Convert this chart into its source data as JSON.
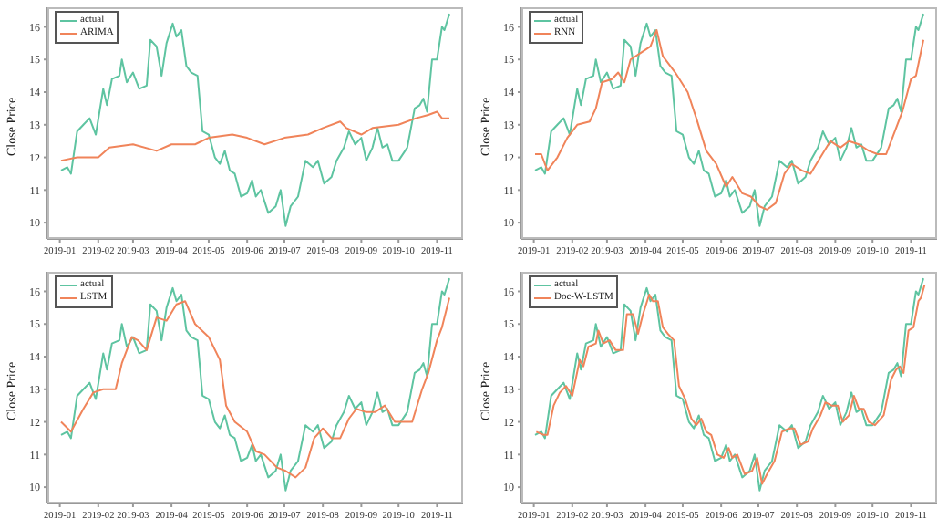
{
  "chart_data": [
    {
      "type": "line",
      "ylabel": "Close Price",
      "xlim": [
        "2018-12-22",
        "2019-11-22"
      ],
      "ylim": [
        9.5,
        16.6
      ],
      "xticks": [
        "2019-01",
        "2019-02",
        "2019-03",
        "2019-04",
        "2019-05",
        "2019-06",
        "2019-07",
        "2019-08",
        "2019-09",
        "2019-10",
        "2019-11"
      ],
      "yticks": [
        10,
        11,
        12,
        13,
        14,
        15,
        16
      ],
      "legend": "top left",
      "series": [
        {
          "name": "actual",
          "color": "#5ec4a1",
          "x": [
            "2019-01-02",
            "2019-01-07",
            "2019-01-10",
            "2019-01-15",
            "2019-01-20",
            "2019-01-25",
            "2019-01-30",
            "2019-02-05",
            "2019-02-08",
            "2019-02-12",
            "2019-02-18",
            "2019-02-20",
            "2019-02-24",
            "2019-03-01",
            "2019-03-06",
            "2019-03-12",
            "2019-03-15",
            "2019-03-20",
            "2019-03-24",
            "2019-03-28",
            "2019-04-02",
            "2019-04-05",
            "2019-04-09",
            "2019-04-13",
            "2019-04-17",
            "2019-04-22",
            "2019-04-26",
            "2019-05-01",
            "2019-05-06",
            "2019-05-10",
            "2019-05-14",
            "2019-05-18",
            "2019-05-22",
            "2019-05-27",
            "2019-06-01",
            "2019-06-05",
            "2019-06-08",
            "2019-06-12",
            "2019-06-18",
            "2019-06-24",
            "2019-06-28",
            "2019-07-02",
            "2019-07-06",
            "2019-07-12",
            "2019-07-18",
            "2019-07-24",
            "2019-07-28",
            "2019-08-02",
            "2019-08-08",
            "2019-08-12",
            "2019-08-18",
            "2019-08-22",
            "2019-08-27",
            "2019-09-01",
            "2019-09-05",
            "2019-09-10",
            "2019-09-14",
            "2019-09-18",
            "2019-09-22",
            "2019-09-26",
            "2019-10-01",
            "2019-10-08",
            "2019-10-14",
            "2019-10-18",
            "2019-10-21",
            "2019-10-24",
            "2019-10-28",
            "2019-11-01",
            "2019-11-05",
            "2019-11-07",
            "2019-11-11"
          ],
          "values": [
            11.6,
            11.7,
            11.5,
            12.8,
            13.0,
            13.2,
            12.7,
            14.1,
            13.6,
            14.4,
            14.5,
            15.0,
            14.3,
            14.6,
            14.1,
            14.2,
            15.6,
            15.4,
            14.5,
            15.5,
            16.1,
            15.7,
            15.9,
            14.8,
            14.6,
            14.5,
            12.8,
            12.7,
            12.0,
            11.8,
            12.2,
            11.6,
            11.5,
            10.8,
            10.9,
            11.3,
            10.8,
            11.0,
            10.3,
            10.5,
            11.0,
            9.9,
            10.5,
            10.8,
            11.9,
            11.7,
            11.9,
            11.2,
            11.4,
            11.9,
            12.3,
            12.8,
            12.4,
            12.6,
            11.9,
            12.3,
            12.9,
            12.3,
            12.4,
            11.9,
            11.9,
            12.3,
            13.5,
            13.6,
            13.8,
            13.4,
            15.0,
            15.0,
            16.0,
            15.9,
            16.4
          ]
        },
        {
          "name": "ARIMA",
          "color": "#f0845a",
          "x": [
            "2019-01-02",
            "2019-01-15",
            "2019-02-01",
            "2019-02-10",
            "2019-03-01",
            "2019-03-20",
            "2019-04-01",
            "2019-04-20",
            "2019-05-01",
            "2019-05-20",
            "2019-06-01",
            "2019-06-15",
            "2019-07-01",
            "2019-07-20",
            "2019-08-01",
            "2019-08-15",
            "2019-08-20",
            "2019-09-01",
            "2019-09-10",
            "2019-10-01",
            "2019-10-15",
            "2019-10-25",
            "2019-11-01",
            "2019-11-05",
            "2019-11-11"
          ],
          "values": [
            11.9,
            12.0,
            12.0,
            12.3,
            12.4,
            12.2,
            12.4,
            12.4,
            12.6,
            12.7,
            12.6,
            12.4,
            12.6,
            12.7,
            12.9,
            13.1,
            12.9,
            12.7,
            12.9,
            13.0,
            13.2,
            13.3,
            13.4,
            13.2,
            13.2
          ]
        }
      ]
    },
    {
      "type": "line",
      "ylabel": "Close Price",
      "xlim": [
        "2018-12-22",
        "2019-11-22"
      ],
      "ylim": [
        9.5,
        16.6
      ],
      "xticks": [
        "2019-01",
        "2019-02",
        "2019-03",
        "2019-04",
        "2019-05",
        "2019-06",
        "2019-07",
        "2019-08",
        "2019-09",
        "2019-10",
        "2019-11"
      ],
      "yticks": [
        10,
        11,
        12,
        13,
        14,
        15,
        16
      ],
      "legend": "top left",
      "series": [
        {
          "name": "actual",
          "color": "#5ec4a1",
          "x": [
            "2019-01-02",
            "2019-01-07",
            "2019-01-10",
            "2019-01-15",
            "2019-01-20",
            "2019-01-25",
            "2019-01-30",
            "2019-02-05",
            "2019-02-08",
            "2019-02-12",
            "2019-02-18",
            "2019-02-20",
            "2019-02-24",
            "2019-03-01",
            "2019-03-06",
            "2019-03-12",
            "2019-03-15",
            "2019-03-20",
            "2019-03-24",
            "2019-03-28",
            "2019-04-02",
            "2019-04-05",
            "2019-04-09",
            "2019-04-13",
            "2019-04-17",
            "2019-04-22",
            "2019-04-26",
            "2019-05-01",
            "2019-05-06",
            "2019-05-10",
            "2019-05-14",
            "2019-05-18",
            "2019-05-22",
            "2019-05-27",
            "2019-06-01",
            "2019-06-05",
            "2019-06-08",
            "2019-06-12",
            "2019-06-18",
            "2019-06-24",
            "2019-06-28",
            "2019-07-02",
            "2019-07-06",
            "2019-07-12",
            "2019-07-18",
            "2019-07-24",
            "2019-07-28",
            "2019-08-02",
            "2019-08-08",
            "2019-08-12",
            "2019-08-18",
            "2019-08-22",
            "2019-08-27",
            "2019-09-01",
            "2019-09-05",
            "2019-09-10",
            "2019-09-14",
            "2019-09-18",
            "2019-09-22",
            "2019-09-26",
            "2019-10-01",
            "2019-10-08",
            "2019-10-14",
            "2019-10-18",
            "2019-10-21",
            "2019-10-24",
            "2019-10-28",
            "2019-11-01",
            "2019-11-05",
            "2019-11-07",
            "2019-11-11"
          ],
          "values": [
            11.6,
            11.7,
            11.5,
            12.8,
            13.0,
            13.2,
            12.7,
            14.1,
            13.6,
            14.4,
            14.5,
            15.0,
            14.3,
            14.6,
            14.1,
            14.2,
            15.6,
            15.4,
            14.5,
            15.5,
            16.1,
            15.7,
            15.9,
            14.8,
            14.6,
            14.5,
            12.8,
            12.7,
            12.0,
            11.8,
            12.2,
            11.6,
            11.5,
            10.8,
            10.9,
            11.3,
            10.8,
            11.0,
            10.3,
            10.5,
            11.0,
            9.9,
            10.5,
            10.8,
            11.9,
            11.7,
            11.9,
            11.2,
            11.4,
            11.9,
            12.3,
            12.8,
            12.4,
            12.6,
            11.9,
            12.3,
            12.9,
            12.3,
            12.4,
            11.9,
            11.9,
            12.3,
            13.5,
            13.6,
            13.8,
            13.4,
            15.0,
            15.0,
            16.0,
            15.9,
            16.4
          ]
        },
        {
          "name": "RNN",
          "color": "#f0845a",
          "x": [
            "2019-01-02",
            "2019-01-07",
            "2019-01-12",
            "2019-01-20",
            "2019-01-28",
            "2019-02-05",
            "2019-02-15",
            "2019-02-20",
            "2019-02-25",
            "2019-03-05",
            "2019-03-10",
            "2019-03-15",
            "2019-03-20",
            "2019-03-28",
            "2019-04-05",
            "2019-04-10",
            "2019-04-15",
            "2019-04-25",
            "2019-05-05",
            "2019-05-12",
            "2019-05-20",
            "2019-05-28",
            "2019-06-05",
            "2019-06-10",
            "2019-06-18",
            "2019-06-25",
            "2019-07-02",
            "2019-07-08",
            "2019-07-15",
            "2019-07-22",
            "2019-07-28",
            "2019-08-05",
            "2019-08-12",
            "2019-08-20",
            "2019-08-28",
            "2019-09-05",
            "2019-09-12",
            "2019-09-20",
            "2019-09-28",
            "2019-10-05",
            "2019-10-12",
            "2019-10-20",
            "2019-10-25",
            "2019-11-01",
            "2019-11-05",
            "2019-11-11"
          ],
          "values": [
            12.1,
            12.1,
            11.6,
            12.0,
            12.6,
            13.0,
            13.1,
            13.5,
            14.3,
            14.4,
            14.6,
            14.3,
            15.0,
            15.2,
            15.4,
            15.9,
            15.1,
            14.6,
            14.0,
            13.2,
            12.2,
            11.8,
            11.1,
            11.4,
            10.9,
            10.8,
            10.5,
            10.4,
            10.6,
            11.5,
            11.8,
            11.6,
            11.5,
            12.0,
            12.5,
            12.3,
            12.5,
            12.4,
            12.2,
            12.1,
            12.1,
            12.9,
            13.4,
            14.4,
            14.5,
            15.6
          ]
        }
      ]
    },
    {
      "type": "line",
      "ylabel": "Close Price",
      "xlim": [
        "2018-12-22",
        "2019-11-22"
      ],
      "ylim": [
        9.5,
        16.6
      ],
      "xticks": [
        "2019-01",
        "2019-02",
        "2019-03",
        "2019-04",
        "2019-05",
        "2019-06",
        "2019-07",
        "2019-08",
        "2019-09",
        "2019-10",
        "2019-11"
      ],
      "yticks": [
        10,
        11,
        12,
        13,
        14,
        15,
        16
      ],
      "legend": "top left",
      "series": [
        {
          "name": "actual",
          "color": "#5ec4a1",
          "x": [
            "2019-01-02",
            "2019-01-07",
            "2019-01-10",
            "2019-01-15",
            "2019-01-20",
            "2019-01-25",
            "2019-01-30",
            "2019-02-05",
            "2019-02-08",
            "2019-02-12",
            "2019-02-18",
            "2019-02-20",
            "2019-02-24",
            "2019-03-01",
            "2019-03-06",
            "2019-03-12",
            "2019-03-15",
            "2019-03-20",
            "2019-03-24",
            "2019-03-28",
            "2019-04-02",
            "2019-04-05",
            "2019-04-09",
            "2019-04-13",
            "2019-04-17",
            "2019-04-22",
            "2019-04-26",
            "2019-05-01",
            "2019-05-06",
            "2019-05-10",
            "2019-05-14",
            "2019-05-18",
            "2019-05-22",
            "2019-05-27",
            "2019-06-01",
            "2019-06-05",
            "2019-06-08",
            "2019-06-12",
            "2019-06-18",
            "2019-06-24",
            "2019-06-28",
            "2019-07-02",
            "2019-07-06",
            "2019-07-12",
            "2019-07-18",
            "2019-07-24",
            "2019-07-28",
            "2019-08-02",
            "2019-08-08",
            "2019-08-12",
            "2019-08-18",
            "2019-08-22",
            "2019-08-27",
            "2019-09-01",
            "2019-09-05",
            "2019-09-10",
            "2019-09-14",
            "2019-09-18",
            "2019-09-22",
            "2019-09-26",
            "2019-10-01",
            "2019-10-08",
            "2019-10-14",
            "2019-10-18",
            "2019-10-21",
            "2019-10-24",
            "2019-10-28",
            "2019-11-01",
            "2019-11-05",
            "2019-11-07",
            "2019-11-11"
          ],
          "values": [
            11.6,
            11.7,
            11.5,
            12.8,
            13.0,
            13.2,
            12.7,
            14.1,
            13.6,
            14.4,
            14.5,
            15.0,
            14.3,
            14.6,
            14.1,
            14.2,
            15.6,
            15.4,
            14.5,
            15.5,
            16.1,
            15.7,
            15.9,
            14.8,
            14.6,
            14.5,
            12.8,
            12.7,
            12.0,
            11.8,
            12.2,
            11.6,
            11.5,
            10.8,
            10.9,
            11.3,
            10.8,
            11.0,
            10.3,
            10.5,
            11.0,
            9.9,
            10.5,
            10.8,
            11.9,
            11.7,
            11.9,
            11.2,
            11.4,
            11.9,
            12.3,
            12.8,
            12.4,
            12.6,
            11.9,
            12.3,
            12.9,
            12.3,
            12.4,
            11.9,
            11.9,
            12.3,
            13.5,
            13.6,
            13.8,
            13.4,
            15.0,
            15.0,
            16.0,
            15.9,
            16.4
          ]
        },
        {
          "name": "LSTM",
          "color": "#f0845a",
          "x": [
            "2019-01-02",
            "2019-01-10",
            "2019-01-20",
            "2019-01-28",
            "2019-02-05",
            "2019-02-15",
            "2019-02-20",
            "2019-02-28",
            "2019-03-05",
            "2019-03-12",
            "2019-03-20",
            "2019-03-28",
            "2019-04-05",
            "2019-04-12",
            "2019-04-20",
            "2019-05-01",
            "2019-05-10",
            "2019-05-15",
            "2019-05-22",
            "2019-06-01",
            "2019-06-08",
            "2019-06-15",
            "2019-06-25",
            "2019-07-02",
            "2019-07-10",
            "2019-07-18",
            "2019-07-25",
            "2019-08-01",
            "2019-08-08",
            "2019-08-15",
            "2019-08-22",
            "2019-08-28",
            "2019-09-05",
            "2019-09-12",
            "2019-09-20",
            "2019-09-28",
            "2019-10-05",
            "2019-10-12",
            "2019-10-20",
            "2019-10-25",
            "2019-11-01",
            "2019-11-05",
            "2019-11-11"
          ],
          "values": [
            12.0,
            11.7,
            12.4,
            12.9,
            13.0,
            13.0,
            13.8,
            14.6,
            14.5,
            14.2,
            15.2,
            15.1,
            15.6,
            15.7,
            15.0,
            14.6,
            13.9,
            12.5,
            12.0,
            11.7,
            11.1,
            11.0,
            10.6,
            10.5,
            10.3,
            10.6,
            11.5,
            11.8,
            11.5,
            11.5,
            12.1,
            12.4,
            12.3,
            12.3,
            12.5,
            12.0,
            12.0,
            12.0,
            13.0,
            13.5,
            14.5,
            14.9,
            15.8
          ]
        }
      ]
    },
    {
      "type": "line",
      "ylabel": "Close Price",
      "xlim": [
        "2018-12-22",
        "2019-11-22"
      ],
      "ylim": [
        9.5,
        16.6
      ],
      "xticks": [
        "2019-01",
        "2019-02",
        "2019-03",
        "2019-04",
        "2019-05",
        "2019-06",
        "2019-07",
        "2019-08",
        "2019-09",
        "2019-10",
        "2019-11"
      ],
      "yticks": [
        10,
        11,
        12,
        13,
        14,
        15,
        16
      ],
      "legend": "top left",
      "series": [
        {
          "name": "actual",
          "color": "#5ec4a1",
          "x": [
            "2019-01-02",
            "2019-01-07",
            "2019-01-10",
            "2019-01-15",
            "2019-01-20",
            "2019-01-25",
            "2019-01-30",
            "2019-02-05",
            "2019-02-08",
            "2019-02-12",
            "2019-02-18",
            "2019-02-20",
            "2019-02-24",
            "2019-03-01",
            "2019-03-06",
            "2019-03-12",
            "2019-03-15",
            "2019-03-20",
            "2019-03-24",
            "2019-03-28",
            "2019-04-02",
            "2019-04-05",
            "2019-04-09",
            "2019-04-13",
            "2019-04-17",
            "2019-04-22",
            "2019-04-26",
            "2019-05-01",
            "2019-05-06",
            "2019-05-10",
            "2019-05-14",
            "2019-05-18",
            "2019-05-22",
            "2019-05-27",
            "2019-06-01",
            "2019-06-05",
            "2019-06-08",
            "2019-06-12",
            "2019-06-18",
            "2019-06-24",
            "2019-06-28",
            "2019-07-02",
            "2019-07-06",
            "2019-07-12",
            "2019-07-18",
            "2019-07-24",
            "2019-07-28",
            "2019-08-02",
            "2019-08-08",
            "2019-08-12",
            "2019-08-18",
            "2019-08-22",
            "2019-08-27",
            "2019-09-01",
            "2019-09-05",
            "2019-09-10",
            "2019-09-14",
            "2019-09-18",
            "2019-09-22",
            "2019-09-26",
            "2019-10-01",
            "2019-10-08",
            "2019-10-14",
            "2019-10-18",
            "2019-10-21",
            "2019-10-24",
            "2019-10-28",
            "2019-11-01",
            "2019-11-05",
            "2019-11-07",
            "2019-11-11"
          ],
          "values": [
            11.6,
            11.7,
            11.5,
            12.8,
            13.0,
            13.2,
            12.7,
            14.1,
            13.6,
            14.4,
            14.5,
            15.0,
            14.3,
            14.6,
            14.1,
            14.2,
            15.6,
            15.4,
            14.5,
            15.5,
            16.1,
            15.7,
            15.9,
            14.8,
            14.6,
            14.5,
            12.8,
            12.7,
            12.0,
            11.8,
            12.2,
            11.6,
            11.5,
            10.8,
            10.9,
            11.3,
            10.8,
            11.0,
            10.3,
            10.5,
            11.0,
            9.9,
            10.5,
            10.8,
            11.9,
            11.7,
            11.9,
            11.2,
            11.4,
            11.9,
            12.3,
            12.8,
            12.4,
            12.6,
            11.9,
            12.3,
            12.9,
            12.3,
            12.4,
            11.9,
            11.9,
            12.3,
            13.5,
            13.6,
            13.8,
            13.4,
            15.0,
            15.0,
            16.0,
            15.9,
            16.4
          ]
        },
        {
          "name": "Doc-W-LSTM",
          "color": "#f0845a",
          "x": [
            "2019-01-03",
            "2019-01-09",
            "2019-01-12",
            "2019-01-17",
            "2019-01-22",
            "2019-01-27",
            "2019-02-01",
            "2019-02-07",
            "2019-02-10",
            "2019-02-14",
            "2019-02-20",
            "2019-02-22",
            "2019-02-26",
            "2019-03-03",
            "2019-03-08",
            "2019-03-14",
            "2019-03-17",
            "2019-03-22",
            "2019-03-26",
            "2019-03-30",
            "2019-04-04",
            "2019-04-07",
            "2019-04-11",
            "2019-04-15",
            "2019-04-19",
            "2019-04-24",
            "2019-04-28",
            "2019-05-03",
            "2019-05-08",
            "2019-05-12",
            "2019-05-16",
            "2019-05-20",
            "2019-05-24",
            "2019-05-29",
            "2019-06-03",
            "2019-06-07",
            "2019-06-10",
            "2019-06-14",
            "2019-06-20",
            "2019-06-26",
            "2019-06-30",
            "2019-07-04",
            "2019-07-08",
            "2019-07-14",
            "2019-07-20",
            "2019-07-26",
            "2019-07-30",
            "2019-08-04",
            "2019-08-10",
            "2019-08-14",
            "2019-08-20",
            "2019-08-24",
            "2019-08-29",
            "2019-09-03",
            "2019-09-07",
            "2019-09-12",
            "2019-09-16",
            "2019-09-20",
            "2019-09-24",
            "2019-09-28",
            "2019-10-03",
            "2019-10-10",
            "2019-10-16",
            "2019-10-20",
            "2019-10-23",
            "2019-10-26",
            "2019-10-30",
            "2019-11-03",
            "2019-11-07",
            "2019-11-09",
            "2019-11-12"
          ],
          "values": [
            11.7,
            11.6,
            11.6,
            12.5,
            12.9,
            13.1,
            12.8,
            13.9,
            13.7,
            14.3,
            14.4,
            14.8,
            14.4,
            14.5,
            14.2,
            14.2,
            15.3,
            15.3,
            14.7,
            15.3,
            15.9,
            15.7,
            15.7,
            14.9,
            14.7,
            14.5,
            13.1,
            12.7,
            12.1,
            11.9,
            12.1,
            11.7,
            11.6,
            11.0,
            10.9,
            11.2,
            10.9,
            11.0,
            10.4,
            10.5,
            10.9,
            10.1,
            10.4,
            10.8,
            11.7,
            11.8,
            11.8,
            11.3,
            11.4,
            11.8,
            12.2,
            12.6,
            12.5,
            12.5,
            12.0,
            12.2,
            12.8,
            12.4,
            12.4,
            12.0,
            11.9,
            12.2,
            13.3,
            13.6,
            13.7,
            13.5,
            14.8,
            14.9,
            15.7,
            15.8,
            16.2
          ]
        }
      ]
    }
  ]
}
